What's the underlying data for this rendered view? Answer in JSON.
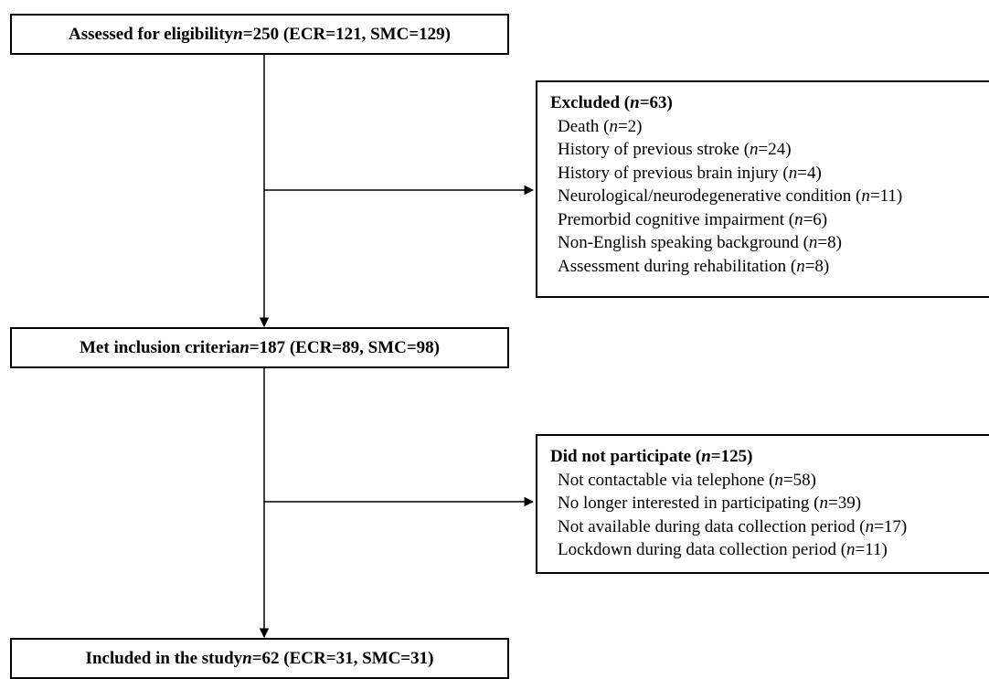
{
  "boxes": {
    "assessed": {
      "text_a": "Assessed for eligibility ",
      "n_symbol": "n",
      "text_b": "=250 (ECR=121, SMC=129)"
    },
    "met": {
      "text_a": "Met inclusion criteria ",
      "n_symbol": "n",
      "text_b": "=187 (ECR=89, SMC=98)"
    },
    "included": {
      "text_a": "Included in the study ",
      "n_symbol": "n",
      "text_b": "=62 (ECR=31, SMC=31)"
    }
  },
  "excluded": {
    "header_a": "Excluded (",
    "header_n": "n",
    "header_b": "=63)",
    "items": [
      {
        "label": "Death (",
        "n": "n",
        "value": "=2)"
      },
      {
        "label": "History of previous stroke (",
        "n": "n",
        "value": "=24)"
      },
      {
        "label": "History of previous brain injury (",
        "n": "n",
        "value": "=4)"
      },
      {
        "label": "Neurological/neurodegenerative condition (",
        "n": "n",
        "value": "=11)"
      },
      {
        "label": "Premorbid cognitive impairment (",
        "n": "n",
        "value": "=6)"
      },
      {
        "label": "Non-English speaking background (",
        "n": "n",
        "value": "=8)"
      },
      {
        "label": "Assessment during rehabilitation (",
        "n": "n",
        "value": "=8)"
      }
    ]
  },
  "did_not_participate": {
    "header_a": "Did not participate (",
    "header_n": "n",
    "header_b": "=125)",
    "items": [
      {
        "label": "Not contactable via telephone (",
        "n": "n",
        "value": "=58)"
      },
      {
        "label": "No longer interested in participating (",
        "n": "n",
        "value": "=39)"
      },
      {
        "label": "Not available during data collection period (",
        "n": "n",
        "value": "=17)"
      },
      {
        "label": "Lockdown during data collection period (",
        "n": "n",
        "value": "=11)"
      }
    ]
  }
}
